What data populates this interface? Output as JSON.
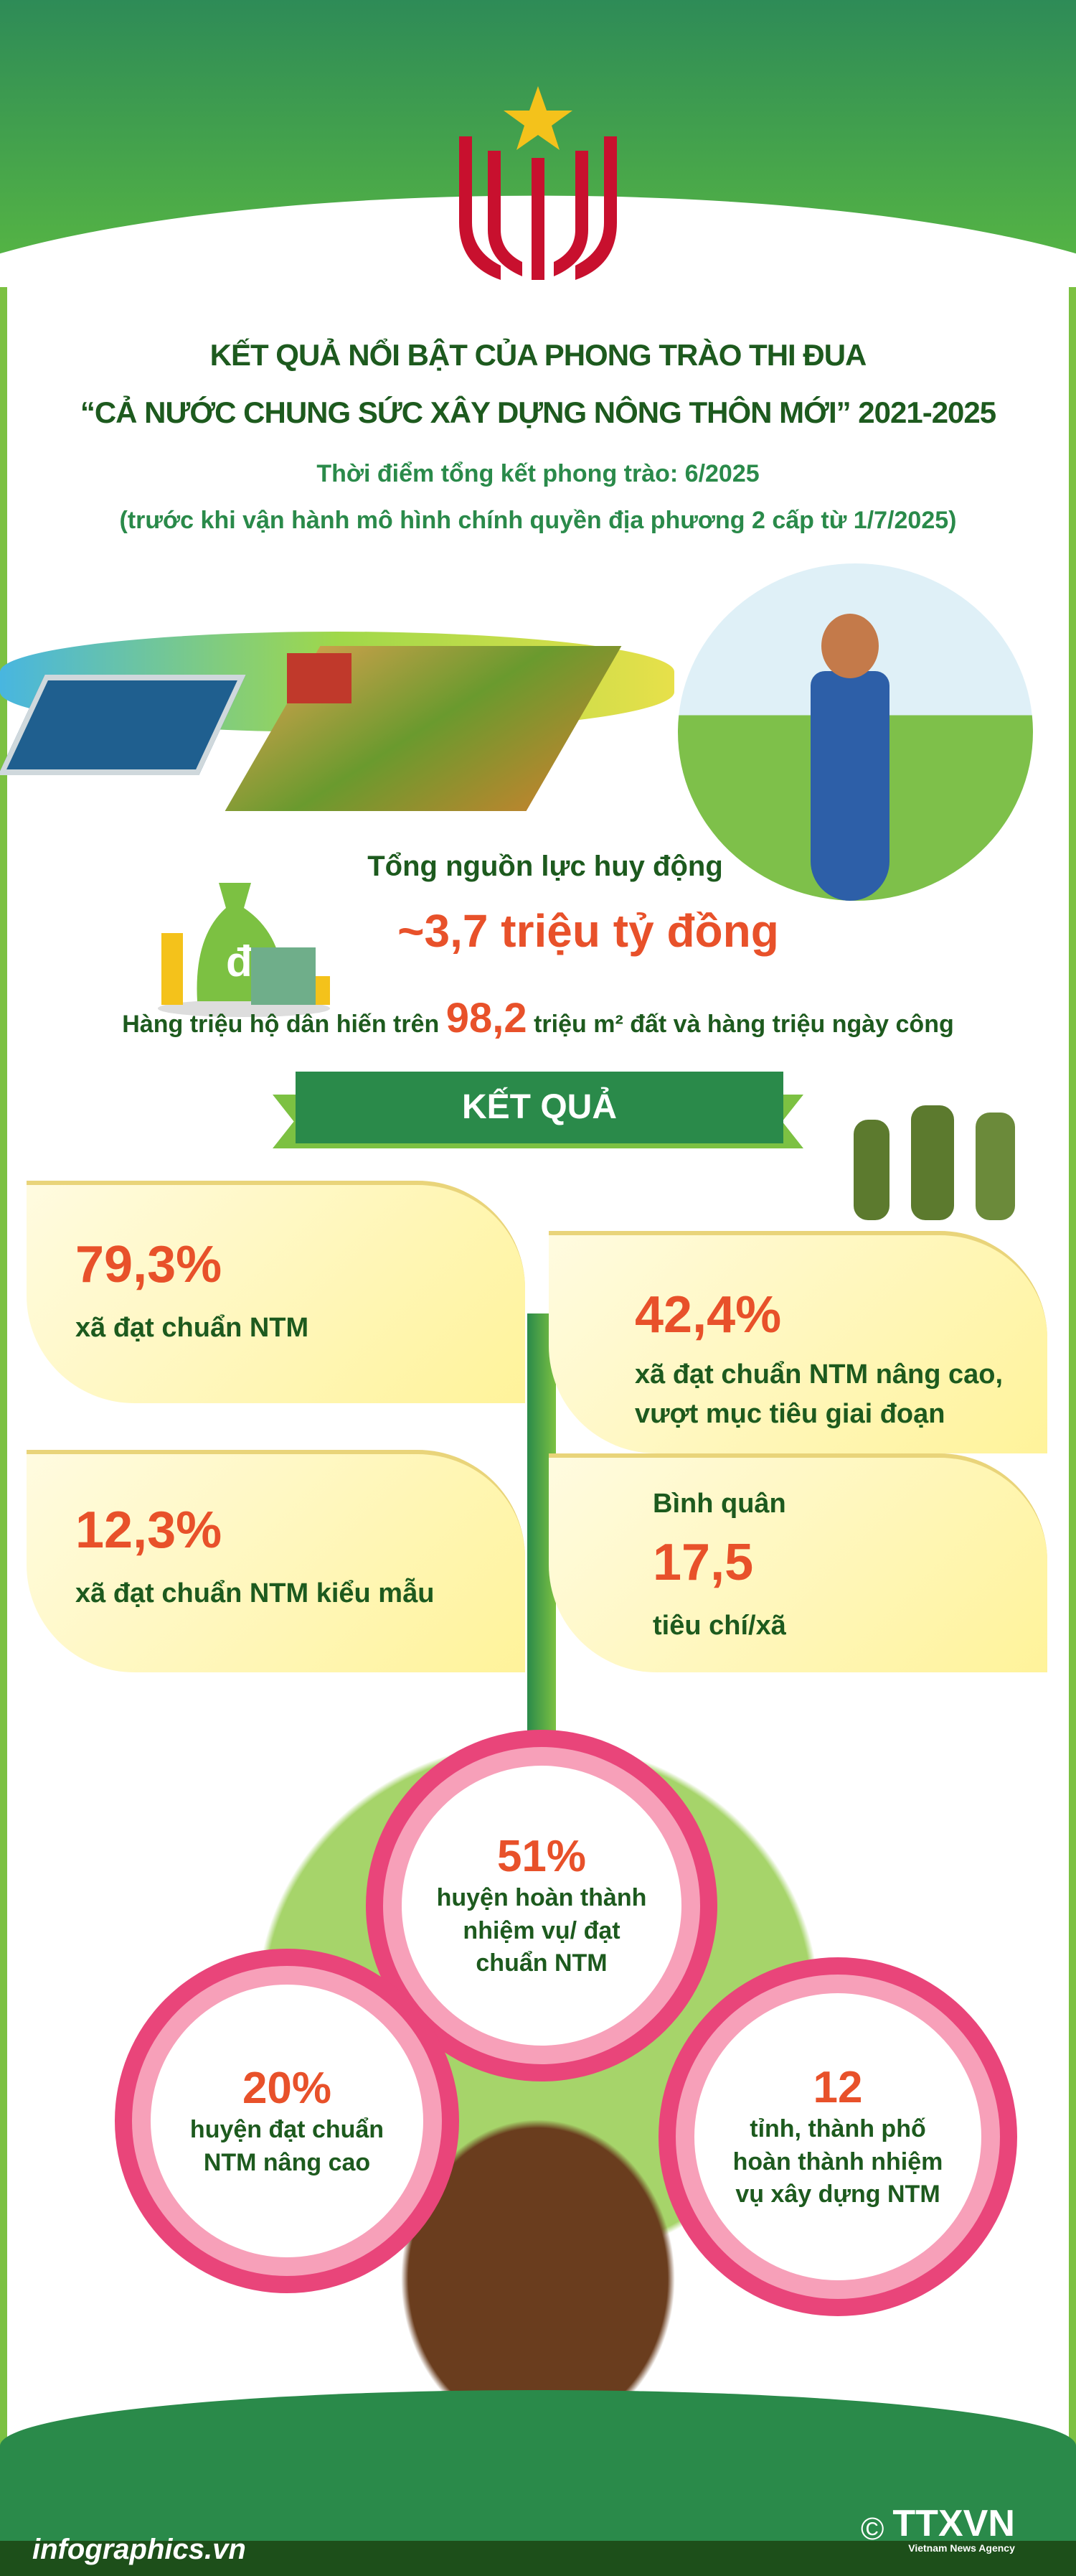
{
  "header": {
    "title_line1": "KẾT QUẢ NỔI BẬT CỦA PHONG TRÀO THI ĐUA",
    "title_line2": "“CẢ NƯỚC CHUNG SỨC XÂY DỰNG NÔNG THÔN MỚI” 2021-2025",
    "subtitle_line1": "Thời điểm tổng kết phong trào: 6/2025",
    "subtitle_line2": "(trước khi vận hành mô hình chính quyền địa phương 2 cấp từ 1/7/2025)"
  },
  "resources": {
    "label": "Tổng nguồn lực huy động",
    "value": "~3,7 triệu tỷ đồng",
    "land_prefix": "Hàng triệu hộ dân hiến trên",
    "land_value": "98,2",
    "land_suffix": "triệu m² đất và hàng triệu ngày công"
  },
  "results": {
    "banner": "KẾT QUẢ",
    "cards": [
      {
        "value": "79,3%",
        "label": "xã đạt chuẩn NTM"
      },
      {
        "value": "42,4%",
        "label_line1": "xã đạt chuẩn NTM nâng cao,",
        "label_line2": "vượt mục tiêu giai đoạn"
      },
      {
        "value": "12,3%",
        "label": "xã đạt chuẩn NTM kiểu mẫu"
      },
      {
        "prefix": "Bình quân",
        "value": "17,5",
        "label": "tiêu chí/xã"
      }
    ]
  },
  "flowers": [
    {
      "value": "51%",
      "label": "huyện hoàn thành nhiệm vụ/ đạt chuẩn NTM"
    },
    {
      "value": "20%",
      "label": "huyện đạt chuẩn NTM nâng cao"
    },
    {
      "value": "12",
      "label": "tỉnh, thành phố hoàn thành nhiệm vụ xây dựng NTM"
    }
  ],
  "footer": {
    "site": "infographics.vn",
    "agency": "TTXVN",
    "agency_sub": "Vietnam News Agency",
    "copyright": "©"
  },
  "colors": {
    "dark_green": "#1d5a1e",
    "green": "#2a8a4a",
    "orange": "#e8512a",
    "pink": "#e9457a",
    "card_yellow": "#fff39a"
  }
}
